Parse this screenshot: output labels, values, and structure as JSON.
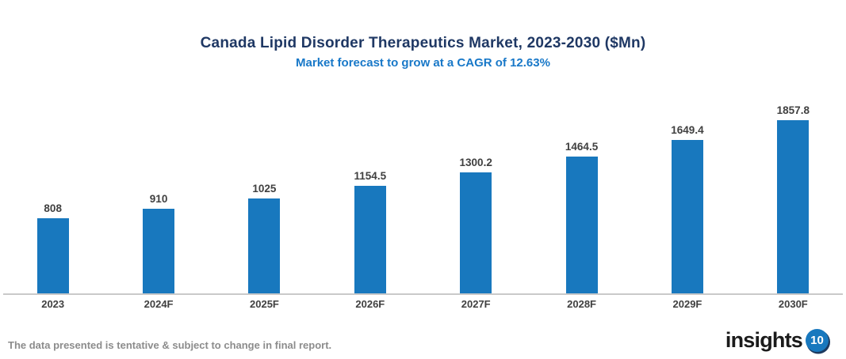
{
  "header": {
    "title": "Canada Lipid Disorder Therapeutics Market, 2023-2030 ($Mn)",
    "subtitle": "Market forecast to grow at a CAGR of 12.63%"
  },
  "chart_data": {
    "type": "bar",
    "categories": [
      "2023",
      "2024F",
      "2025F",
      "2026F",
      "2027F",
      "2028F",
      "2029F",
      "2030F"
    ],
    "values": [
      808,
      910,
      1025,
      1154.5,
      1300.2,
      1464.5,
      1649.4,
      1857.8
    ],
    "value_labels": [
      "808",
      "910",
      "1025",
      "1154.5",
      "1300.2",
      "1464.5",
      "1649.4",
      "1857.8"
    ],
    "title": "Canada Lipid Disorder Therapeutics Market, 2023-2030 ($Mn)",
    "subtitle": "Market forecast to grow at a CAGR of 12.63%",
    "xlabel": "",
    "ylabel": "",
    "ylim": [
      0,
      2000
    ],
    "grid": false,
    "legend": null,
    "bar_color": "#1878BE"
  },
  "footer": {
    "disclaimer": "The data presented is tentative & subject to change in final report."
  },
  "logo": {
    "text": "insights",
    "badge": "10"
  },
  "colors": {
    "title": "#1F3864",
    "subtitle": "#1878C8",
    "bar": "#1878BE",
    "axis": "#C9C9C9",
    "label": "#404040",
    "footer": "#8C8C8C",
    "logo_badge": "#1878BE"
  }
}
